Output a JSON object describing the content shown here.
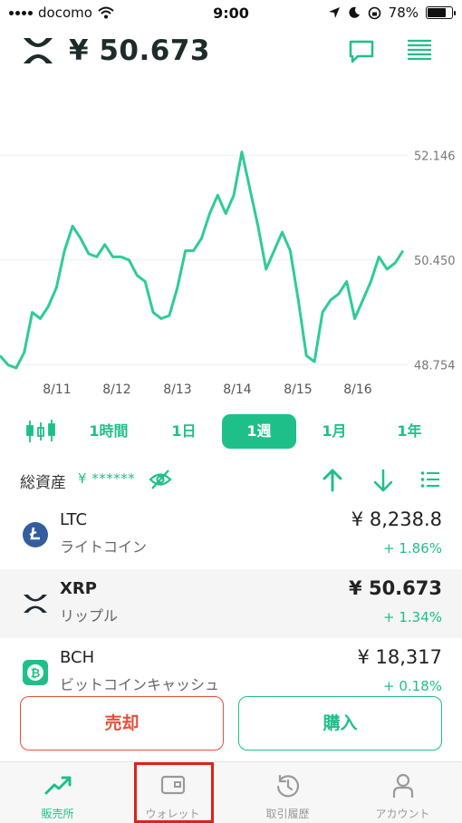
{
  "status_bar": {
    "carrier": "docomo",
    "time": "9:00",
    "battery": "78%",
    "battery_level": 0.78
  },
  "header": {
    "coin_icon": "xrp-logo-icon",
    "price": "¥ 50.673",
    "chat_icon": "chat-bubble-icon",
    "menu_icon": "order-book-icon"
  },
  "chart_data": {
    "type": "line",
    "title": "",
    "xlabel": "",
    "ylabel": "",
    "x_tick_labels": [
      "8/11",
      "8/12",
      "8/13",
      "8/14",
      "8/15",
      "8/16"
    ],
    "y_tick_labels": [
      "52.146",
      "50.450",
      "48.754"
    ],
    "ylim": [
      48.2,
      52.9
    ],
    "grid": true,
    "color": "#2ecc95",
    "series": [
      {
        "values": [
          48.9,
          48.75,
          48.7,
          48.95,
          49.6,
          49.5,
          49.7,
          50.0,
          50.6,
          51.0,
          50.8,
          50.55,
          50.5,
          50.7,
          50.5,
          50.5,
          50.45,
          50.2,
          50.1,
          49.6,
          49.5,
          49.55,
          50.0,
          50.6,
          50.6,
          50.8,
          51.2,
          51.5,
          51.2,
          51.5,
          52.2,
          51.6,
          51.0,
          50.3,
          50.6,
          50.9,
          50.6,
          49.8,
          48.9,
          48.8,
          49.6,
          49.8,
          49.9,
          50.1,
          49.5,
          49.8,
          50.1,
          50.5,
          50.3,
          50.4,
          50.6
        ]
      }
    ]
  },
  "ranges": {
    "candle_icon": "candlestick-icon",
    "items": [
      "1時間",
      "1日",
      "1週",
      "1月",
      "1年"
    ],
    "active_index": 2
  },
  "assets": {
    "label": "総資産",
    "amount": "¥ ******",
    "eye_icon": "eye-hidden-icon",
    "up_icon": "arrow-up-icon",
    "down_icon": "arrow-down-icon",
    "list_icon": "list-icon"
  },
  "coins": [
    {
      "symbol": "LTC",
      "name": "ライトコイン",
      "value": "¥ 8,238.8",
      "change": "+ 1.86%",
      "icon": "litecoin-icon",
      "color": "#345d9d"
    },
    {
      "symbol": "XRP",
      "name": "リップル",
      "value": "¥ 50.673",
      "change": "+ 1.34%",
      "icon": "xrp-icon",
      "color": "#23292f"
    },
    {
      "symbol": "BCH",
      "name": "ビットコインキャッシュ",
      "value": "¥ 18,317",
      "change": "+ 0.18%",
      "icon": "bitcoin-cash-icon",
      "color": "#1fbf8a"
    }
  ],
  "actions": {
    "sell": "売却",
    "buy": "購入"
  },
  "tabbar": {
    "items": [
      {
        "label": "販売所",
        "icon": "trend-up-icon"
      },
      {
        "label": "ウォレット",
        "icon": "wallet-icon"
      },
      {
        "label": "取引履歴",
        "icon": "history-icon"
      },
      {
        "label": "アカウント",
        "icon": "person-icon"
      }
    ],
    "active_index": 0
  },
  "colors": {
    "accent": "#1fbf8a",
    "sell": "#e6503a",
    "highlight": "#e0201a"
  }
}
